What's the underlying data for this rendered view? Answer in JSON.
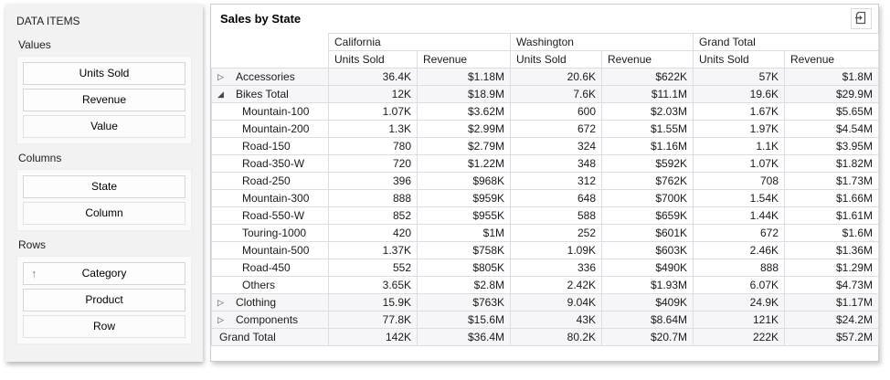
{
  "sidebar": {
    "title": "DATA ITEMS",
    "sections": [
      {
        "label": "Values",
        "items": [
          {
            "label": "Units Sold"
          },
          {
            "label": "Revenue"
          },
          {
            "label": "Value",
            "placeholder": true
          }
        ]
      },
      {
        "label": "Columns",
        "items": [
          {
            "label": "State"
          },
          {
            "label": "Column",
            "placeholder": true
          }
        ]
      },
      {
        "label": "Rows",
        "items": [
          {
            "label": "Category",
            "sort": "asc"
          },
          {
            "label": "Product"
          },
          {
            "label": "Row",
            "placeholder": true
          }
        ]
      }
    ]
  },
  "icons": {
    "collapsed": "▷",
    "expanded": "◢",
    "sort_asc": "↑",
    "export": "export-icon"
  },
  "pivot": {
    "title": "Sales by State",
    "column_groups": [
      {
        "label": "California"
      },
      {
        "label": "Washington"
      },
      {
        "label": "Grand Total"
      }
    ],
    "measure_headers": [
      "Units Sold",
      "Revenue"
    ],
    "rows": [
      {
        "label": "Accessories",
        "expander": "collapsed",
        "level": 0,
        "type": "total",
        "values": [
          "36.4K",
          "$1.18M",
          "20.6K",
          "$622K",
          "57K",
          "$1.8M"
        ]
      },
      {
        "label": "Bikes Total",
        "expander": "expanded",
        "level": 0,
        "type": "total",
        "values": [
          "12K",
          "$18.9M",
          "7.6K",
          "$11.1M",
          "19.6K",
          "$29.9M"
        ]
      },
      {
        "label": "Mountain-100",
        "level": 1,
        "values": [
          "1.07K",
          "$3.62M",
          "600",
          "$2.03M",
          "1.67K",
          "$5.65M"
        ]
      },
      {
        "label": "Mountain-200",
        "level": 1,
        "values": [
          "1.3K",
          "$2.99M",
          "672",
          "$1.55M",
          "1.97K",
          "$4.54M"
        ]
      },
      {
        "label": "Road-150",
        "level": 1,
        "values": [
          "780",
          "$2.79M",
          "324",
          "$1.16M",
          "1.1K",
          "$3.95M"
        ]
      },
      {
        "label": "Road-350-W",
        "level": 1,
        "values": [
          "720",
          "$1.22M",
          "348",
          "$592K",
          "1.07K",
          "$1.82M"
        ]
      },
      {
        "label": "Road-250",
        "level": 1,
        "values": [
          "396",
          "$968K",
          "312",
          "$762K",
          "708",
          "$1.73M"
        ]
      },
      {
        "label": "Mountain-300",
        "level": 1,
        "values": [
          "888",
          "$959K",
          "648",
          "$700K",
          "1.54K",
          "$1.66M"
        ]
      },
      {
        "label": "Road-550-W",
        "level": 1,
        "values": [
          "852",
          "$955K",
          "588",
          "$659K",
          "1.44K",
          "$1.61M"
        ]
      },
      {
        "label": "Touring-1000",
        "level": 1,
        "values": [
          "420",
          "$1M",
          "252",
          "$601K",
          "672",
          "$1.6M"
        ]
      },
      {
        "label": "Mountain-500",
        "level": 1,
        "values": [
          "1.37K",
          "$758K",
          "1.09K",
          "$603K",
          "2.46K",
          "$1.36M"
        ]
      },
      {
        "label": "Road-450",
        "level": 1,
        "values": [
          "552",
          "$805K",
          "336",
          "$490K",
          "888",
          "$1.29M"
        ]
      },
      {
        "label": "Others",
        "level": 1,
        "values": [
          "3.65K",
          "$2.8M",
          "2.42K",
          "$1.93M",
          "6.07K",
          "$4.73M"
        ]
      },
      {
        "label": "Clothing",
        "expander": "collapsed",
        "level": 0,
        "type": "total",
        "values": [
          "15.9K",
          "$763K",
          "9.04K",
          "$409K",
          "24.9K",
          "$1.17M"
        ]
      },
      {
        "label": "Components",
        "expander": "collapsed",
        "level": 0,
        "type": "total",
        "values": [
          "77.8K",
          "$15.6M",
          "43K",
          "$8.64M",
          "121K",
          "$24.2M"
        ]
      },
      {
        "label": "Grand Total",
        "level": 0,
        "type": "grand",
        "values": [
          "142K",
          "$36.4M",
          "80.2K",
          "$20.7M",
          "222K",
          "$57.2M"
        ]
      }
    ]
  },
  "colors": {
    "panel_bg": "#f2f2f2",
    "grid_border": "#dcdce2",
    "total_row_bg": "#f6f6f8"
  }
}
